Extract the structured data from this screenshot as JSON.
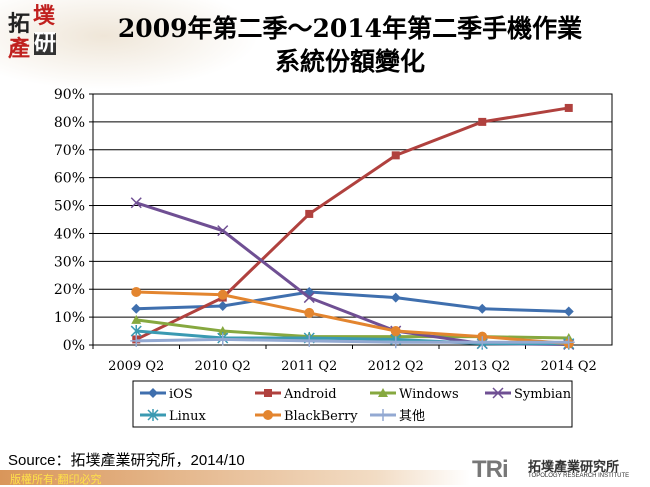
{
  "logo": {
    "chars": [
      "拓",
      "墣",
      "產",
      "研"
    ]
  },
  "chart_data": {
    "type": "line",
    "title": "2009年第二季～2014年第二季手機作業系統份額變化",
    "title_lines": [
      "2009年第二季～2014年第二季手機作業",
      "系統份額變化"
    ],
    "categories": [
      "2009 Q2",
      "2010 Q2",
      "2011 Q2",
      "2012 Q2",
      "2013 Q2",
      "2014 Q2"
    ],
    "ylim": [
      0,
      90
    ],
    "yticks": [
      "0%",
      "10%",
      "20%",
      "30%",
      "40%",
      "50%",
      "60%",
      "70%",
      "80%",
      "90%"
    ],
    "grid": true,
    "legend_position": "bottom",
    "series": [
      {
        "name": "iOS",
        "color": "#3f6fae",
        "marker": "diamond",
        "values": [
          13,
          14,
          19,
          17,
          13,
          12
        ]
      },
      {
        "name": "Android",
        "color": "#b0413e",
        "marker": "square",
        "values": [
          2,
          17,
          47,
          68,
          80,
          85
        ]
      },
      {
        "name": "Windows",
        "color": "#86a83f",
        "marker": "triangle",
        "values": [
          9,
          5,
          3,
          3,
          3,
          2.5
        ]
      },
      {
        "name": "Symbian",
        "color": "#6f4f93",
        "marker": "x",
        "values": [
          51,
          41,
          17,
          5,
          0.5,
          0.2
        ]
      },
      {
        "name": "Linux",
        "color": "#3a9ab2",
        "marker": "star",
        "values": [
          5,
          2.5,
          2.5,
          2,
          0.5,
          0.5
        ]
      },
      {
        "name": "BlackBerry",
        "color": "#e3852f",
        "marker": "circle",
        "values": [
          19,
          18,
          11.5,
          5,
          3,
          0.5
        ]
      },
      {
        "name": "其他",
        "color": "#93a9d2",
        "marker": "plus",
        "values": [
          1.5,
          2,
          1.5,
          1,
          1,
          1
        ]
      }
    ]
  },
  "source": "Source：拓墣產業研究所，2014/10",
  "footer": {
    "copyright": "版權所有‧翻印必究",
    "brand": "TRi",
    "brand_cn": "拓墣產業研究所",
    "brand_en": "TOPOLOGY RESEARCH INSTITUTE"
  }
}
